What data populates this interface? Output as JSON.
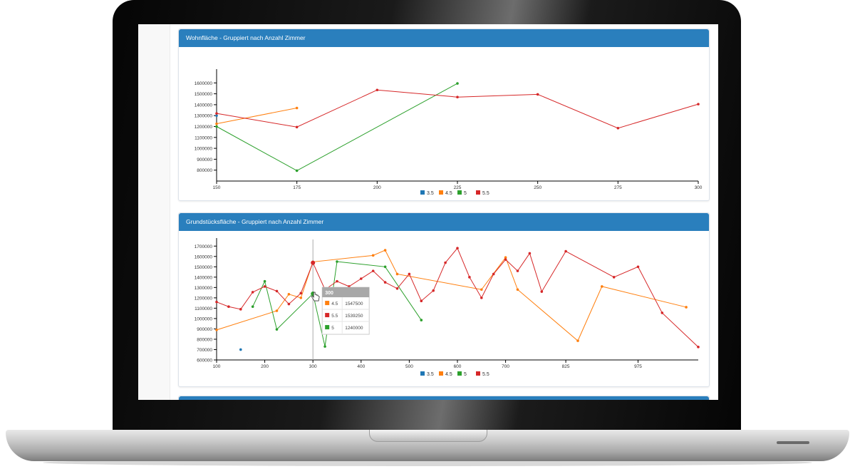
{
  "panels": [
    {
      "title": "Wohnfläche - Gruppiert nach Anzahl Zimmer"
    },
    {
      "title": "Grundstücksfläche - Gruppiert nach Anzahl Zimmer"
    }
  ],
  "colors": {
    "3.5": "#1f77b4",
    "4.5": "#ff7f0e",
    "5": "#2ca02c",
    "5.5": "#d62728",
    "header": "#2a7fbd"
  },
  "chart_data": [
    {
      "type": "line",
      "title": "Wohnfläche - Gruppiert nach Anzahl Zimmer",
      "xlim": [
        150,
        300
      ],
      "ylim": [
        700000,
        1700000
      ],
      "xticks": [
        150,
        175,
        200,
        225,
        250,
        275,
        300
      ],
      "yticks": [
        800000,
        900000,
        1000000,
        1100000,
        1200000,
        1300000,
        1400000,
        1500000,
        1600000
      ],
      "legend_position": "bottom",
      "series": [
        {
          "name": "3.5",
          "points": [
            [
              150,
              1300000
            ]
          ]
        },
        {
          "name": "4.5",
          "points": [
            [
              150,
              1225000
            ],
            [
              175,
              1370000
            ]
          ]
        },
        {
          "name": "5",
          "points": [
            [
              150,
              1200000
            ],
            [
              175,
              795000
            ],
            [
              225,
              1595000
            ]
          ]
        },
        {
          "name": "5.5",
          "points": [
            [
              150,
              1320000
            ],
            [
              175,
              1195000
            ],
            [
              200,
              1535000
            ],
            [
              225,
              1470000
            ],
            [
              250,
              1495000
            ],
            [
              275,
              1185000
            ],
            [
              300,
              1405000
            ]
          ]
        }
      ]
    },
    {
      "type": "line",
      "title": "Grundstücksfläche - Gruppiert nach Anzahl Zimmer",
      "xlim": [
        100,
        1100
      ],
      "ylim": [
        600000,
        1750000
      ],
      "xticks": [
        100,
        200,
        300,
        400,
        500,
        600,
        700,
        825,
        975
      ],
      "yticks": [
        600000,
        700000,
        800000,
        900000,
        1000000,
        1100000,
        1200000,
        1300000,
        1400000,
        1500000,
        1600000,
        1700000
      ],
      "legend_position": "bottom",
      "series": [
        {
          "name": "3.5",
          "points": [
            [
              150,
              700000
            ]
          ]
        },
        {
          "name": "4.5",
          "points": [
            [
              100,
              890000
            ],
            [
              225,
              1075000
            ],
            [
              250,
              1235000
            ],
            [
              275,
              1200000
            ],
            [
              300,
              1547500
            ],
            [
              425,
              1610000
            ],
            [
              450,
              1660000
            ],
            [
              475,
              1430000
            ],
            [
              650,
              1280000
            ],
            [
              700,
              1590000
            ],
            [
              725,
              1280000
            ],
            [
              850,
              785000
            ],
            [
              900,
              1310000
            ],
            [
              1075,
              1110000
            ]
          ]
        },
        {
          "name": "5",
          "points": [
            [
              175,
              1115000
            ],
            [
              200,
              1360000
            ],
            [
              225,
              895000
            ],
            [
              300,
              1240000
            ],
            [
              325,
              730000
            ],
            [
              350,
              1550000
            ],
            [
              450,
              1500000
            ],
            [
              525,
              985000
            ]
          ]
        },
        {
          "name": "5.5",
          "points": [
            [
              100,
              1160000
            ],
            [
              125,
              1115000
            ],
            [
              150,
              1090000
            ],
            [
              175,
              1255000
            ],
            [
              200,
              1310000
            ],
            [
              225,
              1265000
            ],
            [
              250,
              1140000
            ],
            [
              275,
              1245000
            ],
            [
              300,
              1539250
            ],
            [
              325,
              1280000
            ],
            [
              350,
              1360000
            ],
            [
              375,
              1310000
            ],
            [
              400,
              1385000
            ],
            [
              425,
              1460000
            ],
            [
              450,
              1350000
            ],
            [
              475,
              1290000
            ],
            [
              500,
              1430000
            ],
            [
              525,
              1170000
            ],
            [
              550,
              1270000
            ],
            [
              575,
              1540000
            ],
            [
              600,
              1680000
            ],
            [
              625,
              1400000
            ],
            [
              650,
              1200000
            ],
            [
              675,
              1430000
            ],
            [
              700,
              1570000
            ],
            [
              725,
              1460000
            ],
            [
              750,
              1630000
            ],
            [
              775,
              1260000
            ],
            [
              825,
              1650000
            ],
            [
              925,
              1400000
            ],
            [
              975,
              1500000
            ],
            [
              1025,
              1055000
            ],
            [
              1100,
              725000
            ]
          ]
        }
      ],
      "hover_line_x": 300,
      "tooltip": {
        "header": "300",
        "rows": [
          {
            "name": "4.5",
            "value": "1547500"
          },
          {
            "name": "5.5",
            "value": "1539250"
          },
          {
            "name": "5",
            "value": "1240000"
          }
        ]
      }
    }
  ]
}
